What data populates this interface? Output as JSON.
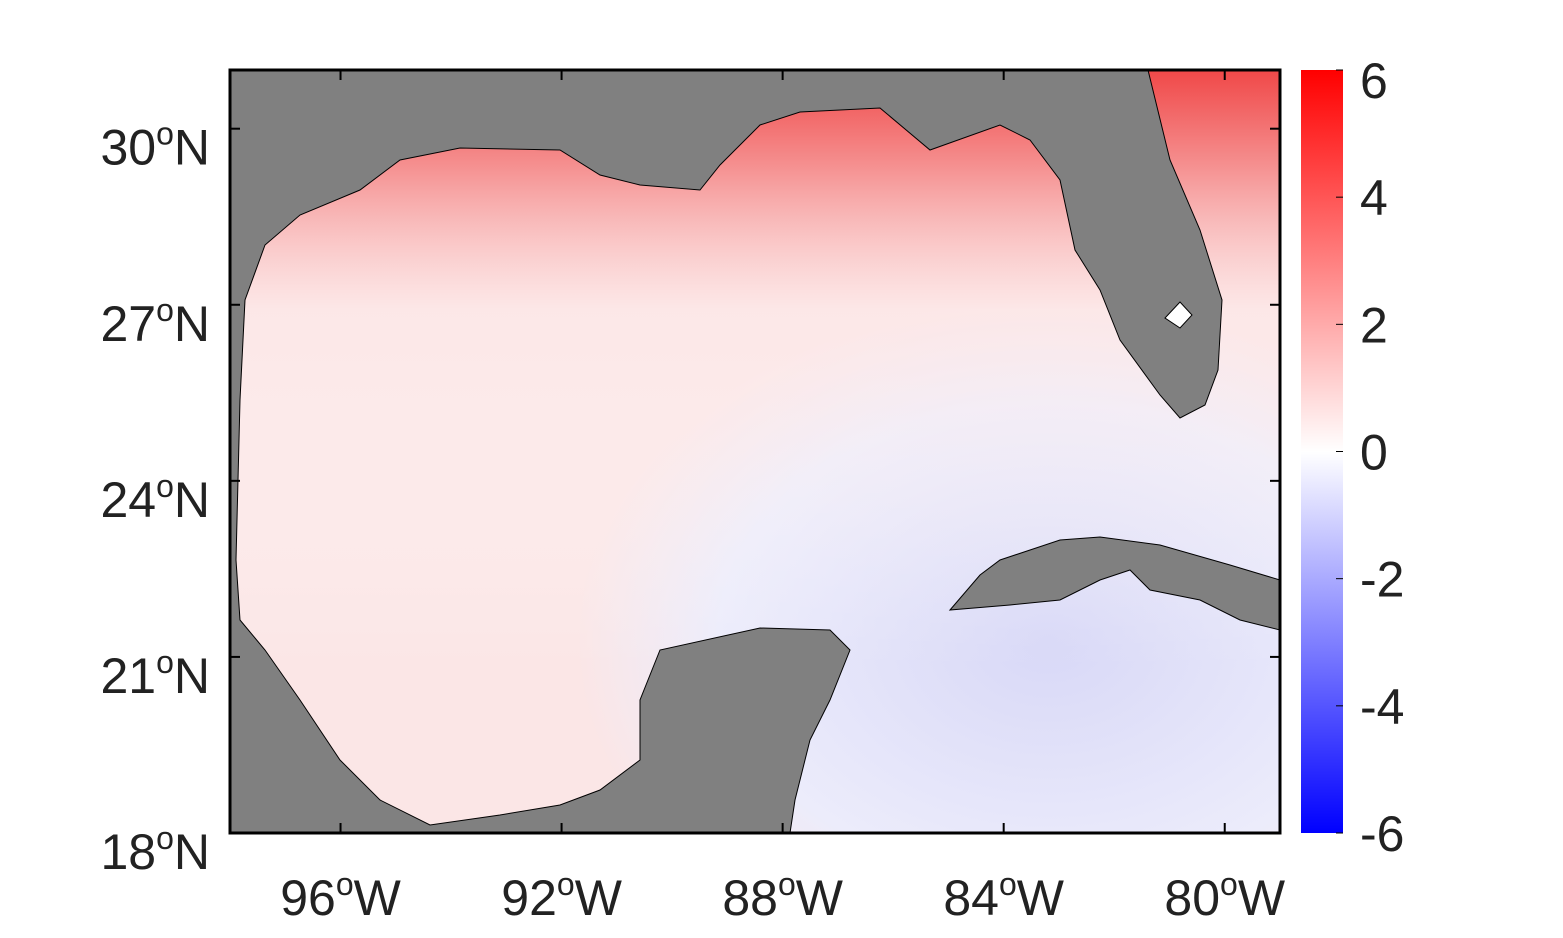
{
  "map": {
    "xlim": [
      -98,
      -79
    ],
    "ylim": [
      18,
      31
    ],
    "xticks": [
      {
        "value": -96,
        "label": "96",
        "sup": "o",
        "suffix": "W"
      },
      {
        "value": -92,
        "label": "92",
        "sup": "o",
        "suffix": "W"
      },
      {
        "value": -88,
        "label": "88",
        "sup": "o",
        "suffix": "W"
      },
      {
        "value": -84,
        "label": "84",
        "sup": "o",
        "suffix": "W"
      },
      {
        "value": -80,
        "label": "80",
        "sup": "o",
        "suffix": "W"
      }
    ],
    "yticks": [
      {
        "value": 18,
        "label": "18",
        "sup": "o",
        "suffix": "N"
      },
      {
        "value": 21,
        "label": "21",
        "sup": "o",
        "suffix": "N"
      },
      {
        "value": 24,
        "label": "24",
        "sup": "o",
        "suffix": "N"
      },
      {
        "value": 27,
        "label": "27",
        "sup": "o",
        "suffix": "N"
      },
      {
        "value": 30,
        "label": "30",
        "sup": "o",
        "suffix": "N"
      }
    ],
    "land_color": "#808080"
  },
  "colorbar": {
    "lim": [
      -6,
      6
    ],
    "ticks": [
      -6,
      -4,
      -2,
      0,
      2,
      4,
      6
    ],
    "colors": [
      "#0000ff",
      "#ffffff",
      "#ff0000"
    ]
  }
}
